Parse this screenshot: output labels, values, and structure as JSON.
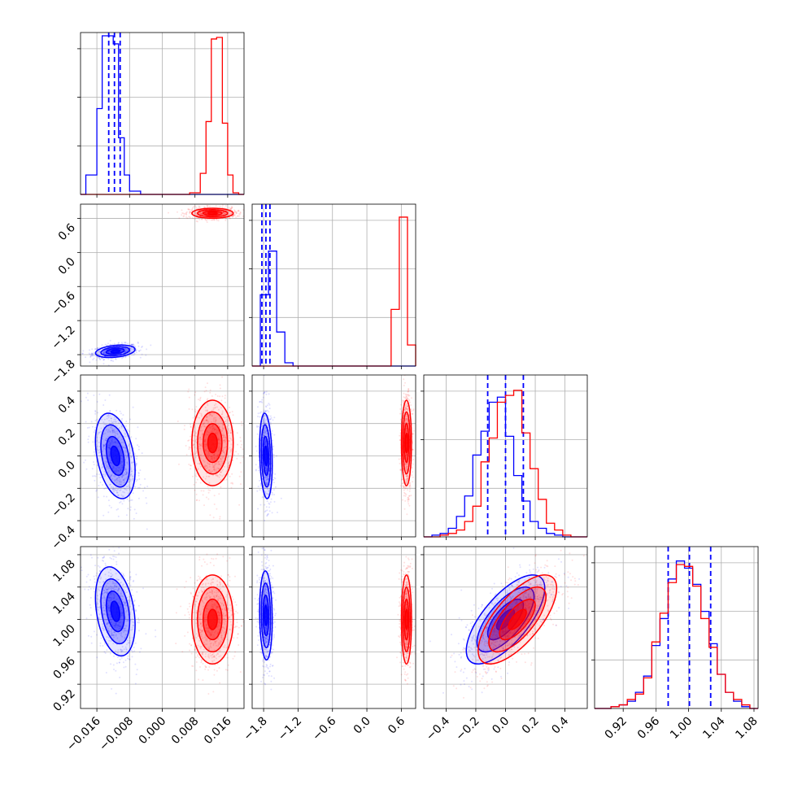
{
  "chart_data": [
    {
      "type": "histogram",
      "panel": "hist-p1",
      "xlim": [
        -0.02,
        0.02
      ],
      "bins": [
        -0.02,
        -0.0187,
        -0.0173,
        -0.016,
        -0.0147,
        -0.0133,
        -0.012,
        -0.0107,
        -0.0093,
        -0.008,
        -0.0067,
        -0.0053,
        -0.004,
        -0.0027,
        -0.0013,
        0.0,
        0.0013,
        0.0027,
        0.004,
        0.0053,
        0.0067,
        0.008,
        0.0093,
        0.0107,
        0.012,
        0.0133,
        0.0147,
        0.016,
        0.0173,
        0.0187,
        0.02
      ],
      "series": [
        {
          "name": "",
          "color": "#0000ff",
          "counts": [
            0,
            0.12,
            0.12,
            0.53,
            0.98,
            0.98,
            0.93,
            0.35,
            0.12,
            0.02,
            0.02,
            0,
            0,
            0,
            0,
            0,
            0,
            0,
            0,
            0,
            0,
            0,
            0,
            0,
            0,
            0,
            0,
            0,
            0,
            0
          ],
          "quantiles": [
            -0.0131,
            -0.0117,
            -0.0103
          ]
        },
        {
          "name": "",
          "color": "#ff0000",
          "counts": [
            0,
            0,
            0,
            0,
            0,
            0,
            0,
            0,
            0,
            0,
            0,
            0,
            0,
            0,
            0,
            0,
            0,
            0,
            0,
            0,
            0.01,
            0.01,
            0.13,
            0.45,
            0.96,
            0.97,
            0.44,
            0.12,
            0.01,
            0
          ]
        }
      ],
      "ylim": [
        0,
        1.0
      ]
    },
    {
      "type": "histogram",
      "panel": "hist-p2",
      "xlim": [
        -2.0,
        0.85
      ],
      "bins": [
        -2.0,
        -1.8575,
        -1.715,
        -1.5725,
        -1.43,
        -1.2875,
        -1.145,
        -1.0025,
        -0.86,
        -0.7175,
        -0.575,
        -0.4325,
        -0.29,
        -0.1475,
        -0.005,
        0.1375,
        0.28,
        0.4225,
        0.565,
        0.7075,
        0.85
      ],
      "series": [
        {
          "name": "",
          "color": "#0000ff",
          "counts": [
            0,
            0.44,
            0.71,
            0.21,
            0.02,
            0,
            0,
            0,
            0,
            0,
            0,
            0,
            0,
            0,
            0,
            0,
            0,
            0,
            0,
            0
          ],
          "quantiles": [
            -1.83,
            -1.76,
            -1.69
          ]
        },
        {
          "name": "",
          "color": "#ff0000",
          "counts": [
            0,
            0,
            0,
            0,
            0,
            0,
            0,
            0,
            0,
            0,
            0,
            0,
            0,
            0,
            0,
            0,
            0,
            0.35,
            0.92,
            0.13
          ]
        }
      ],
      "ylim": [
        0,
        1.0
      ]
    },
    {
      "type": "histogram",
      "panel": "hist-p3",
      "xlim": [
        -0.55,
        0.55
      ],
      "bins": [
        -0.55,
        -0.495,
        -0.44,
        -0.385,
        -0.33,
        -0.275,
        -0.22,
        -0.165,
        -0.11,
        -0.055,
        0.0,
        0.055,
        0.11,
        0.165,
        0.22,
        0.275,
        0.33,
        0.385,
        0.44,
        0.495,
        0.55
      ],
      "series": [
        {
          "name": "",
          "color": "#0000ff",
          "counts": [
            0,
            0.01,
            0.02,
            0.05,
            0.12,
            0.24,
            0.48,
            0.62,
            0.79,
            0.82,
            0.59,
            0.36,
            0.21,
            0.09,
            0.05,
            0.02,
            0.01,
            0,
            0,
            0
          ],
          "quantiles": [
            -0.12,
            0.0,
            0.12
          ]
        },
        {
          "name": "",
          "color": "#ff0000",
          "counts": [
            0,
            0,
            0.01,
            0.02,
            0.04,
            0.09,
            0.18,
            0.44,
            0.58,
            0.79,
            0.83,
            0.86,
            0.61,
            0.4,
            0.22,
            0.08,
            0.04,
            0.01,
            0,
            0
          ]
        }
      ],
      "ylim": [
        0,
        0.95
      ]
    },
    {
      "type": "histogram",
      "panel": "hist-p4",
      "xlim": [
        0.885,
        1.085
      ],
      "bins": [
        0.885,
        0.895,
        0.905,
        0.915,
        0.925,
        0.935,
        0.945,
        0.955,
        0.965,
        0.975,
        0.985,
        0.995,
        1.005,
        1.015,
        1.025,
        1.035,
        1.045,
        1.055,
        1.065,
        1.075,
        1.085
      ],
      "series": [
        {
          "name": "",
          "color": "#0000ff",
          "counts": [
            0,
            0,
            0.01,
            0.02,
            0.04,
            0.09,
            0.18,
            0.35,
            0.5,
            0.72,
            0.82,
            0.78,
            0.69,
            0.54,
            0.36,
            0.19,
            0.09,
            0.04,
            0.01,
            0
          ],
          "quantiles": [
            0.975,
            1.001,
            1.027
          ]
        },
        {
          "name": "",
          "color": "#ff0000",
          "counts": [
            0,
            0,
            0.01,
            0.02,
            0.05,
            0.08,
            0.17,
            0.37,
            0.53,
            0.7,
            0.8,
            0.79,
            0.68,
            0.5,
            0.34,
            0.19,
            0.09,
            0.05,
            0.02,
            0
          ]
        }
      ],
      "ylim": [
        0,
        0.9
      ]
    },
    {
      "type": "scatter",
      "panel": "pair-p1-p2",
      "xlim": [
        -0.02,
        0.02
      ],
      "ylim": [
        -2.0,
        0.85
      ],
      "series": [
        {
          "name": "",
          "color": "#0000ff",
          "center": [
            -0.0115,
            -1.74
          ],
          "spread": [
            0.0022,
            0.05
          ],
          "rho": 0.3
        },
        {
          "name": "",
          "color": "#ff0000",
          "center": [
            0.0123,
            0.69
          ],
          "spread": [
            0.0023,
            0.04
          ],
          "rho": 0.0
        }
      ]
    },
    {
      "type": "scatter",
      "panel": "pair-p1-p3",
      "xlim": [
        -0.02,
        0.02
      ],
      "ylim": [
        -0.5,
        0.5
      ],
      "series": [
        {
          "name": "",
          "color": "#0000ff",
          "center": [
            -0.0115,
            0.0
          ],
          "spread": [
            0.0022,
            0.12
          ],
          "rho": -0.35
        },
        {
          "name": "",
          "color": "#ff0000",
          "center": [
            0.0123,
            0.08
          ],
          "spread": [
            0.0023,
            0.12
          ],
          "rho": 0.0
        }
      ]
    },
    {
      "type": "scatter",
      "panel": "pair-p2-p3",
      "xlim": [
        -2.0,
        0.85
      ],
      "ylim": [
        -0.5,
        0.5
      ],
      "series": [
        {
          "name": "",
          "color": "#0000ff",
          "center": [
            -1.76,
            0.0
          ],
          "spread": [
            0.05,
            0.12
          ],
          "rho": -0.2
        },
        {
          "name": "",
          "color": "#ff0000",
          "center": [
            0.69,
            0.08
          ],
          "spread": [
            0.04,
            0.12
          ],
          "rho": 0.0
        }
      ]
    },
    {
      "type": "scatter",
      "panel": "pair-p1-p4",
      "xlim": [
        -0.02,
        0.02
      ],
      "ylim": [
        0.89,
        1.09
      ],
      "series": [
        {
          "name": "",
          "color": "#0000ff",
          "center": [
            -0.0115,
            1.01
          ],
          "spread": [
            0.0022,
            0.025
          ],
          "rho": -0.3
        },
        {
          "name": "",
          "color": "#ff0000",
          "center": [
            0.0123,
            1.0
          ],
          "spread": [
            0.0023,
            0.025
          ],
          "rho": 0.0
        }
      ]
    },
    {
      "type": "scatter",
      "panel": "pair-p2-p4",
      "xlim": [
        -2.0,
        0.85
      ],
      "ylim": [
        0.89,
        1.09
      ],
      "series": [
        {
          "name": "",
          "color": "#0000ff",
          "center": [
            -1.76,
            1.005
          ],
          "spread": [
            0.05,
            0.025
          ],
          "rho": -0.1
        },
        {
          "name": "",
          "color": "#ff0000",
          "center": [
            0.69,
            1.0
          ],
          "spread": [
            0.04,
            0.025
          ],
          "rho": 0.0
        }
      ]
    },
    {
      "type": "scatter",
      "panel": "pair-p3-p4",
      "xlim": [
        -0.55,
        0.55
      ],
      "ylim": [
        0.89,
        1.09
      ],
      "series": [
        {
          "name": "",
          "color": "#0000ff",
          "center": [
            0.0,
            1.0
          ],
          "spread": [
            0.12,
            0.025
          ],
          "rho": 0.7
        },
        {
          "name": "",
          "color": "#ff0000",
          "center": [
            0.08,
            1.0
          ],
          "spread": [
            0.12,
            0.025
          ],
          "rho": 0.7
        }
      ]
    }
  ],
  "axes": {
    "p1": {
      "ticks": [
        -0.016,
        -0.008,
        0.0,
        0.008,
        0.016
      ],
      "labels": [
        "−0.016",
        "−0.008",
        "0.000",
        "0.008",
        "0.016"
      ]
    },
    "p2": {
      "ticks": [
        -1.8,
        -1.2,
        -0.6,
        0.0,
        0.6
      ],
      "labels": [
        "−1.8",
        "−1.2",
        "−0.6",
        "0.0",
        "0.6"
      ]
    },
    "p3": {
      "ticks": [
        -0.4,
        -0.2,
        0.0,
        0.2,
        0.4
      ],
      "labels": [
        "−0.4",
        "−0.2",
        "0.0",
        "0.2",
        "0.4"
      ]
    },
    "p4": {
      "ticks": [
        0.92,
        0.96,
        1.0,
        1.04,
        1.08
      ],
      "labels": [
        "0.92",
        "0.96",
        "1.00",
        "1.04",
        "1.08"
      ]
    }
  }
}
